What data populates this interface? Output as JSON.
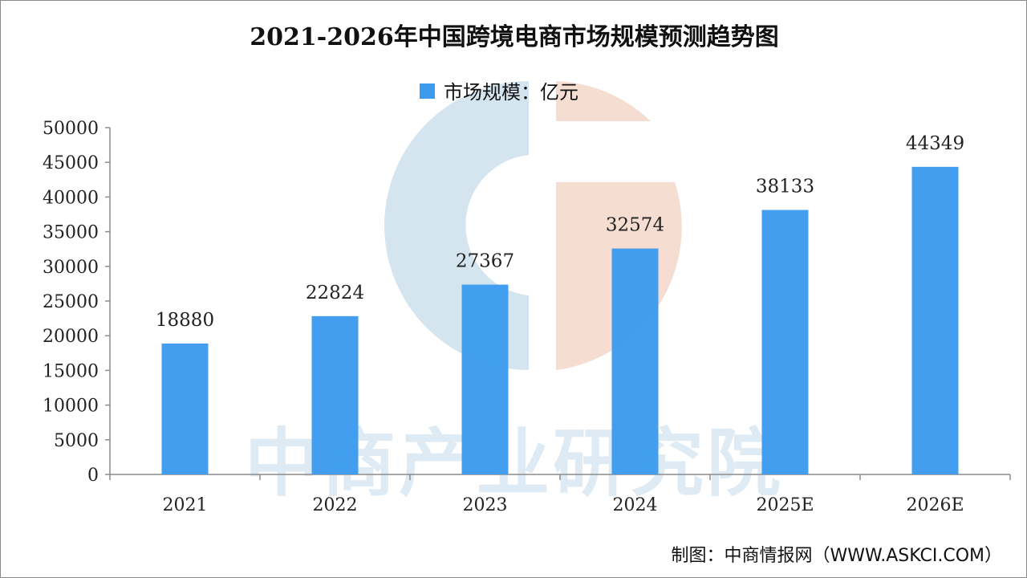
{
  "watermark": {
    "text": "中商产业研究院",
    "logo": "askci-logo"
  },
  "source": "制图：中商情报网（WWW.ASKCI.COM）",
  "colors": {
    "bar": "#3d9bee",
    "axis": "#8c8c8c",
    "wm_blue": "#c7dcea",
    "wm_orange": "#f3d4c7"
  },
  "chart_data": {
    "type": "bar",
    "title": "2021-2026年中国跨境电商市场规模预测趋势图",
    "legend": {
      "label": "市场规模：亿元",
      "position": "top-center"
    },
    "categories": [
      "2021",
      "2022",
      "2023",
      "2024",
      "2025E",
      "2026E"
    ],
    "series": [
      {
        "name": "市场规模：亿元",
        "values": [
          18880,
          22824,
          27367,
          32574,
          38133,
          44349
        ]
      }
    ],
    "data_labels": [
      "18880",
      "22824",
      "27367",
      "32574",
      "38133",
      "44349"
    ],
    "yticks": [
      "0",
      "5000",
      "10000",
      "15000",
      "20000",
      "25000",
      "30000",
      "35000",
      "40000",
      "45000",
      "50000"
    ],
    "ylim": [
      0,
      50000
    ],
    "grid": false
  }
}
